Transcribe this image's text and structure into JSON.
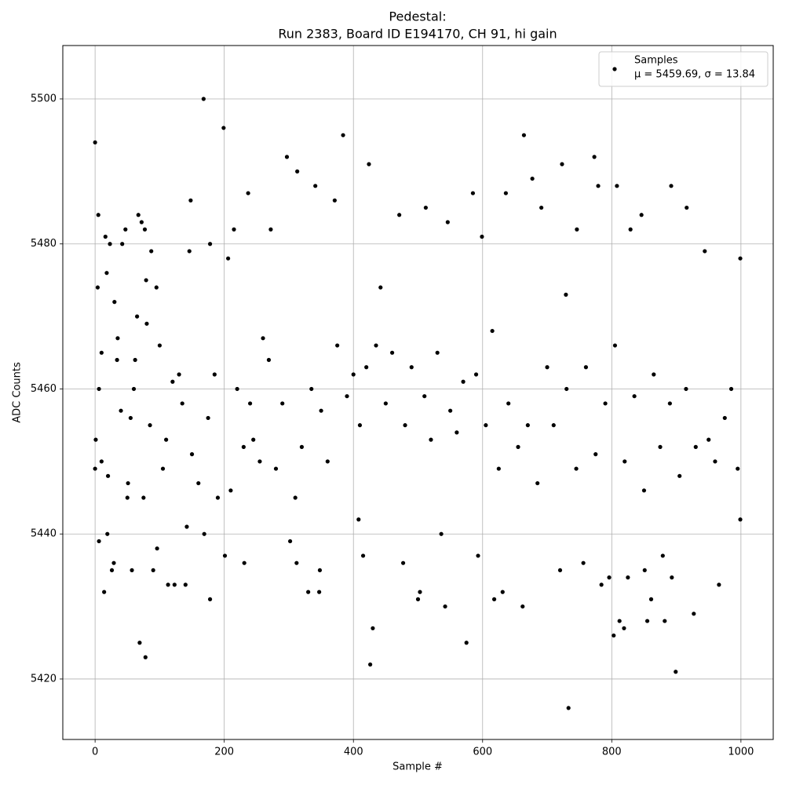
{
  "chart_data": {
    "type": "scatter",
    "title": [
      "Pedestal:",
      "Run 2383, Board ID E194170, CH 91, hi gain"
    ],
    "x_label": "Sample #",
    "y_label": "ADC Counts",
    "xlim": [
      -50,
      1050
    ],
    "ylim": [
      5411.66,
      5507.36
    ],
    "xticks": [
      0,
      200,
      400,
      600,
      800,
      1000
    ],
    "yticks": [
      5420,
      5440,
      5460,
      5480,
      5500
    ],
    "grid": true,
    "legend_position": "upper right",
    "legend_note": "μ = 5459.69, σ = 13.84",
    "series": [
      {
        "name": "Samples",
        "color": "#000000",
        "x": [
          0,
          0,
          1,
          4,
          5,
          6,
          6,
          10,
          14,
          16,
          18,
          19,
          23,
          26,
          29,
          30,
          34,
          35,
          42,
          47,
          51,
          55,
          57,
          62,
          67,
          69,
          72,
          75,
          77,
          78,
          79,
          87,
          90,
          95,
          96,
          113,
          123,
          130,
          140,
          142,
          146,
          148,
          168,
          169,
          178,
          178,
          199,
          201,
          206,
          215,
          231,
          237,
          245,
          269,
          272,
          297,
          302,
          312,
          313,
          330,
          341,
          347,
          348,
          371,
          384,
          408,
          415,
          424,
          426,
          430,
          442,
          471,
          477,
          500,
          503,
          512,
          536,
          542,
          546,
          575,
          585,
          593,
          599,
          618,
          631,
          636,
          662,
          664,
          677,
          691,
          720,
          723,
          729,
          733,
          746,
          756,
          773,
          779,
          784,
          796,
          803,
          808,
          812,
          819,
          825,
          829,
          846,
          851,
          855,
          861,
          879,
          882,
          892,
          893,
          899,
          916,
          927,
          944,
          966,
          999,
          999,
          10,
          20,
          40,
          50,
          60,
          65,
          80,
          85,
          100,
          105,
          110,
          120,
          135,
          150,
          160,
          175,
          185,
          190,
          210,
          220,
          230,
          240,
          255,
          260,
          280,
          290,
          310,
          320,
          335,
          350,
          360,
          375,
          390,
          400,
          410,
          420,
          435,
          450,
          460,
          480,
          490,
          510,
          520,
          530,
          550,
          560,
          570,
          590,
          605,
          615,
          625,
          640,
          655,
          670,
          685,
          700,
          710,
          730,
          745,
          760,
          775,
          790,
          805,
          820,
          835,
          850,
          865,
          875,
          890,
          905,
          915,
          930,
          950,
          960,
          975,
          985,
          995
        ],
        "values": [
          5494,
          5449,
          5453,
          5474,
          5484,
          5460,
          5439,
          5465,
          5432,
          5481,
          5476,
          5440,
          5480,
          5435,
          5436,
          5472,
          5464,
          5467,
          5480,
          5482,
          5447,
          5456,
          5435,
          5464,
          5484,
          5425,
          5483,
          5445,
          5482,
          5423,
          5475,
          5479,
          5435,
          5474,
          5438,
          5433,
          5433,
          5462,
          5433,
          5441,
          5479,
          5486,
          5500,
          5440,
          5431,
          5480,
          5496,
          5437,
          5478,
          5482,
          5436,
          5487,
          5453,
          5464,
          5482,
          5492,
          5439,
          5436,
          5490,
          5432,
          5488,
          5432,
          5435,
          5486,
          5495,
          5442,
          5437,
          5491,
          5422,
          5427,
          5474,
          5484,
          5436,
          5431,
          5432,
          5485,
          5440,
          5430,
          5483,
          5425,
          5487,
          5437,
          5481,
          5431,
          5432,
          5487,
          5430,
          5495,
          5489,
          5485,
          5435,
          5491,
          5473,
          5416,
          5482,
          5436,
          5492,
          5488,
          5433,
          5434,
          5426,
          5488,
          5428,
          5427,
          5434,
          5482,
          5484,
          5435,
          5428,
          5431,
          5437,
          5428,
          5488,
          5434,
          5421,
          5485,
          5429,
          5479,
          5433,
          5478,
          5442,
          5450,
          5448,
          5457,
          5445,
          5460,
          5470,
          5469,
          5455,
          5466,
          5449,
          5453,
          5461,
          5458,
          5451,
          5447,
          5456,
          5462,
          5445,
          5446,
          5460,
          5452,
          5458,
          5450,
          5467,
          5449,
          5458,
          5445,
          5452,
          5460,
          5457,
          5450,
          5466,
          5459,
          5462,
          5455,
          5463,
          5466,
          5458,
          5465,
          5455,
          5463,
          5459,
          5453,
          5465,
          5457,
          5454,
          5461,
          5462,
          5455,
          5468,
          5449,
          5458,
          5452,
          5455,
          5447,
          5463,
          5455,
          5460,
          5449,
          5463,
          5451,
          5458,
          5466,
          5450,
          5459,
          5446,
          5462,
          5452,
          5458,
          5448,
          5460,
          5452,
          5453,
          5450,
          5456,
          5460,
          5449
        ]
      }
    ]
  }
}
